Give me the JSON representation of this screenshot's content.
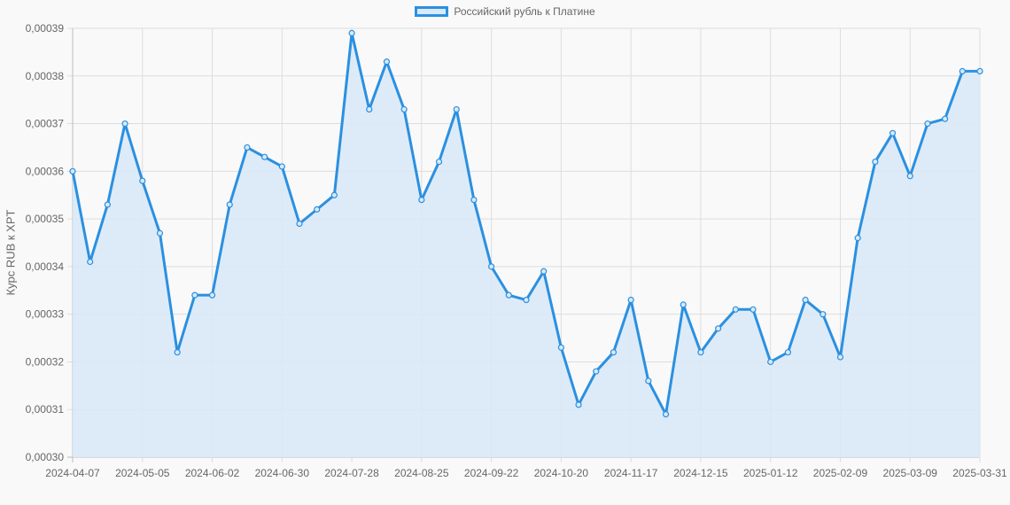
{
  "chart_data": {
    "type": "line",
    "title": "",
    "legend": [
      "Российский рубль к Платине"
    ],
    "legend_position": "top",
    "xlabel": "",
    "ylabel": "Курс RUB к XPT",
    "ylim": [
      0.0003,
      0.00039
    ],
    "grid": true,
    "fill": true,
    "y_ticks": [
      "0,00039",
      "0,00038",
      "0,00037",
      "0,00036",
      "0,00035",
      "0,00034",
      "0,00033",
      "0,00032",
      "0,00031",
      "0,00030"
    ],
    "x_tick_labels": [
      {
        "index": 0,
        "label": "2024-04-07"
      },
      {
        "index": 4,
        "label": "2024-05-05"
      },
      {
        "index": 8,
        "label": "2024-06-02"
      },
      {
        "index": 12,
        "label": "2024-06-30"
      },
      {
        "index": 16,
        "label": "2024-07-28"
      },
      {
        "index": 20,
        "label": "2024-08-25"
      },
      {
        "index": 24,
        "label": "2024-09-22"
      },
      {
        "index": 28,
        "label": "2024-10-20"
      },
      {
        "index": 32,
        "label": "2024-11-17"
      },
      {
        "index": 36,
        "label": "2024-12-15"
      },
      {
        "index": 40,
        "label": "2025-01-12"
      },
      {
        "index": 44,
        "label": "2025-02-09"
      },
      {
        "index": 48,
        "label": "2025-03-09"
      },
      {
        "index": 52,
        "label": "2025-03-31"
      }
    ],
    "series": [
      {
        "name": "Российский рубль к Платине",
        "color": "#2b90e0",
        "fill_color": "#d9e9f8",
        "values": [
          0.00036,
          0.000341,
          0.000353,
          0.00037,
          0.000358,
          0.000347,
          0.000322,
          0.000334,
          0.000334,
          0.000353,
          0.000365,
          0.000363,
          0.000361,
          0.000349,
          0.000352,
          0.000355,
          0.000389,
          0.000373,
          0.000383,
          0.000373,
          0.000354,
          0.000362,
          0.000373,
          0.000354,
          0.00034,
          0.000334,
          0.000333,
          0.000339,
          0.000323,
          0.000311,
          0.000318,
          0.000322,
          0.000333,
          0.000316,
          0.000309,
          0.000332,
          0.000322,
          0.000327,
          0.000331,
          0.000331,
          0.00032,
          0.000322,
          0.000333,
          0.00033,
          0.000321,
          0.000346,
          0.000362,
          0.000368,
          0.000359,
          0.00037,
          0.000371,
          0.000381,
          0.000381
        ]
      }
    ]
  }
}
